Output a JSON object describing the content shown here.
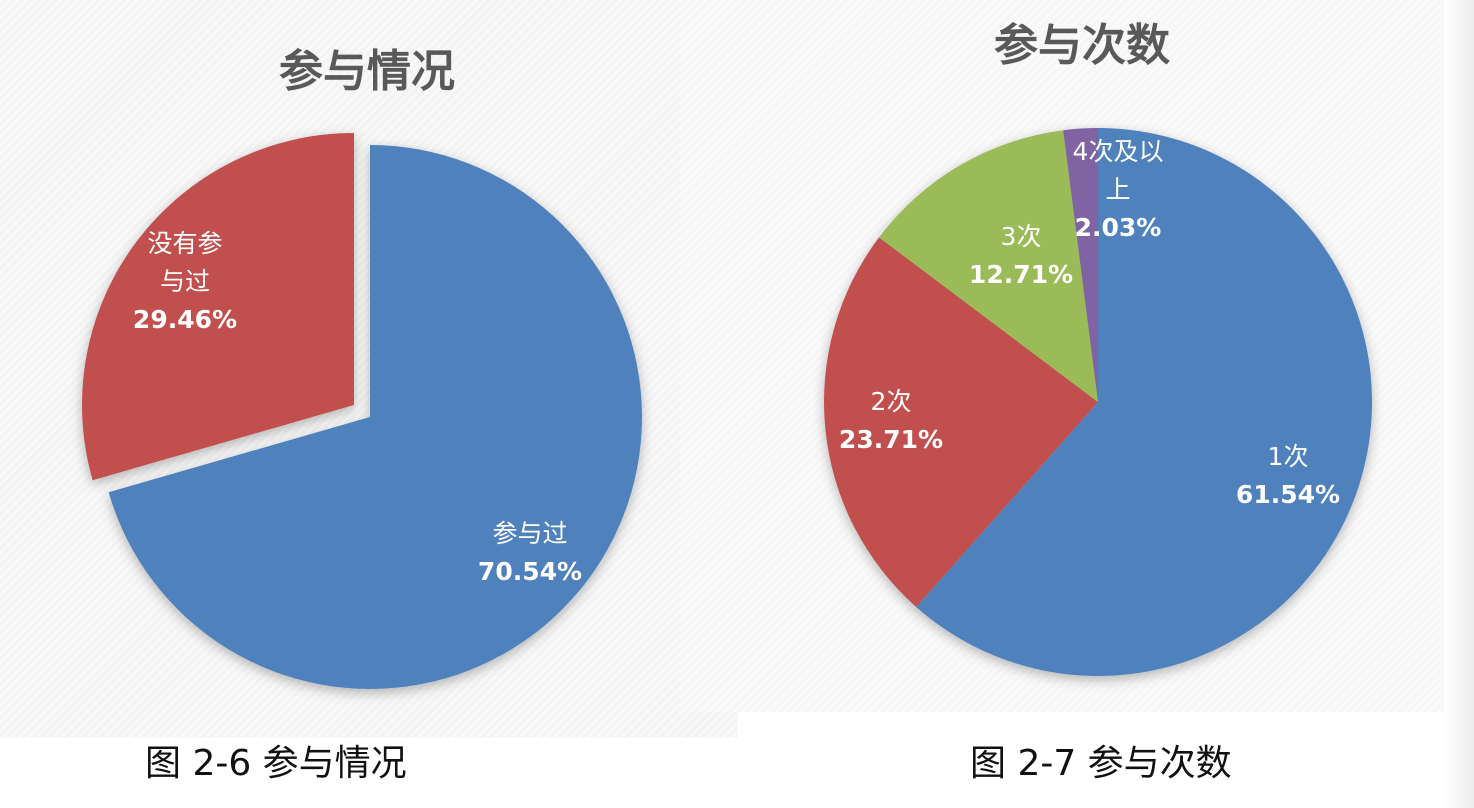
{
  "chart_data": [
    {
      "type": "pie",
      "title": "参与情况",
      "categories": [
        "参与过",
        "没有参与过"
      ],
      "values": [
        70.54,
        29.46
      ],
      "unit": "%",
      "slices": [
        {
          "label_lines": [
            "参与过"
          ],
          "value_text": "70.54%",
          "color": "#4f81bd"
        },
        {
          "label_lines": [
            "没有参",
            "与过"
          ],
          "value_text": "29.46%",
          "color": "#c0504d"
        }
      ],
      "exploded_slice": "没有参与过",
      "legend": "none"
    },
    {
      "type": "pie",
      "title": "参与次数",
      "categories": [
        "1次",
        "2次",
        "3次",
        "4次及以上"
      ],
      "values": [
        61.54,
        23.71,
        12.71,
        2.03
      ],
      "unit": "%",
      "slices": [
        {
          "label_lines": [
            "1次"
          ],
          "value_text": "61.54%",
          "color": "#4f81bd"
        },
        {
          "label_lines": [
            "2次"
          ],
          "value_text": "23.71%",
          "color": "#c0504d"
        },
        {
          "label_lines": [
            "3次"
          ],
          "value_text": "12.71%",
          "color": "#9bbb59"
        },
        {
          "label_lines": [
            "4次及以",
            "上"
          ],
          "value_text": "2.03%",
          "color": "#8064a2"
        }
      ],
      "legend": "none"
    }
  ],
  "captions": {
    "left": "图 2-6 参与情况",
    "right": "图 2-7 参与次数"
  }
}
